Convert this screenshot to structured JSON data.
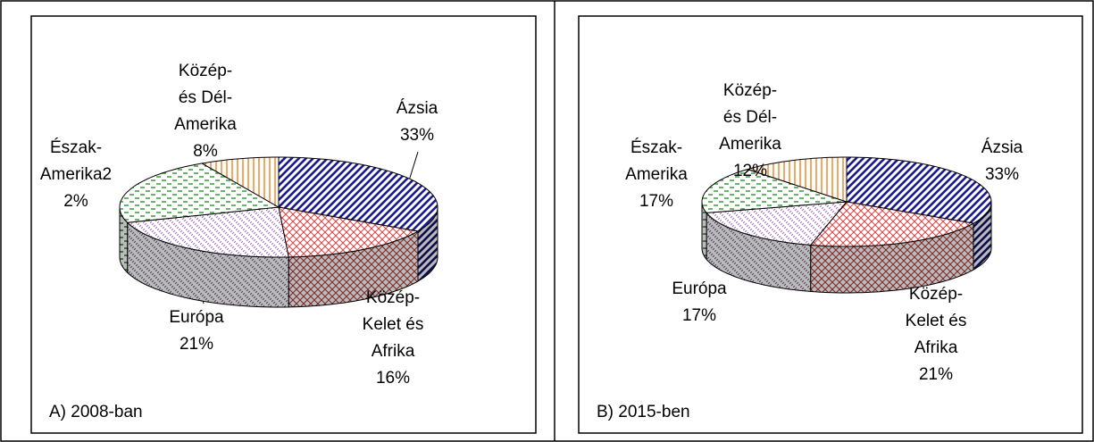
{
  "chart_data": [
    {
      "type": "pie",
      "subtitle": "A) 2008-ban",
      "labels": [
        [
          "Ázsia",
          "33%"
        ],
        [
          "Közép-",
          "Kelet és",
          "Afrika",
          "16%"
        ],
        [
          "Európa",
          "21%"
        ],
        [
          "Észak-",
          "Amerika2",
          "2%"
        ],
        [
          "Közép-",
          "és Dél-",
          "Amerika",
          "8%"
        ]
      ],
      "values": [
        33,
        16,
        21,
        22,
        8
      ],
      "colors": [
        "#1a1a8c",
        "#e04040",
        "#9a70b0",
        "#3a9a3a",
        "#f08020"
      ]
    },
    {
      "type": "pie",
      "subtitle": "B) 2015-ben",
      "labels": [
        [
          "Ázsia",
          "33%"
        ],
        [
          "Közép-",
          "Kelet és",
          "Afrika",
          "21%"
        ],
        [
          "Európa",
          "17%"
        ],
        [
          "Észak-",
          "Amerika",
          "17%"
        ],
        [
          "Közép-",
          "és Dél-",
          "Amerika",
          "12%"
        ]
      ],
      "values": [
        33,
        21,
        17,
        17,
        12
      ],
      "colors": [
        "#1a1a8c",
        "#e04040",
        "#9a70b0",
        "#3a9a3a",
        "#f08020"
      ]
    }
  ]
}
